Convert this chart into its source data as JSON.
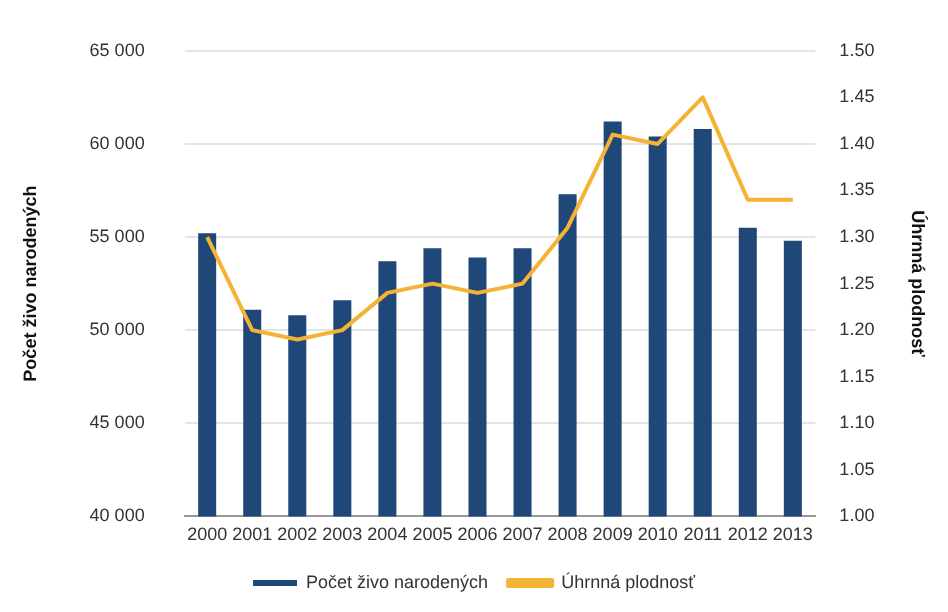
{
  "chart_data": {
    "type": "bar",
    "categories": [
      "2000",
      "2001",
      "2002",
      "2003",
      "2004",
      "2005",
      "2006",
      "2007",
      "2008",
      "2009",
      "2010",
      "2011",
      "2012",
      "2013"
    ],
    "ylabel": "Počet živo narodených",
    "y2label": "Úhrnná plodnosť",
    "series": [
      {
        "name": "Počet živo narodených",
        "color": "#1f4778",
        "values": [
          55200,
          51100,
          50800,
          51600,
          53700,
          54400,
          53900,
          54400,
          57300,
          61200,
          60400,
          60800,
          55500,
          54800
        ]
      },
      {
        "name": "Úhrnná plodnosť",
        "type": "line",
        "axis": "y2",
        "color": "#f5b335",
        "values": [
          1.3,
          1.2,
          1.19,
          1.2,
          1.24,
          1.25,
          1.24,
          1.25,
          1.31,
          1.41,
          1.4,
          1.45,
          1.34,
          1.34
        ]
      }
    ],
    "ylim": [
      40000,
      65000
    ],
    "yticks": [
      {
        "value": 40000,
        "label": "40 000"
      },
      {
        "value": 45000,
        "label": "45 000"
      },
      {
        "value": 50000,
        "label": "50 000"
      },
      {
        "value": 55000,
        "label": "55 000"
      },
      {
        "value": 60000,
        "label": "60 000"
      },
      {
        "value": 65000,
        "label": "65 000"
      }
    ],
    "y2lim": [
      1.0,
      1.5
    ],
    "y2ticks": [
      {
        "value": 1.0,
        "label": "1.00"
      },
      {
        "value": 1.05,
        "label": "1.05"
      },
      {
        "value": 1.1,
        "label": "1.10"
      },
      {
        "value": 1.15,
        "label": "1.15"
      },
      {
        "value": 1.2,
        "label": "1.20"
      },
      {
        "value": 1.25,
        "label": "1.25"
      },
      {
        "value": 1.3,
        "label": "1.30"
      },
      {
        "value": 1.35,
        "label": "1.35"
      },
      {
        "value": 1.4,
        "label": "1.40"
      },
      {
        "value": 1.45,
        "label": "1.45"
      },
      {
        "value": 1.5,
        "label": "1.50"
      }
    ],
    "grid": "y",
    "legend": "bottom",
    "marker": "none"
  }
}
